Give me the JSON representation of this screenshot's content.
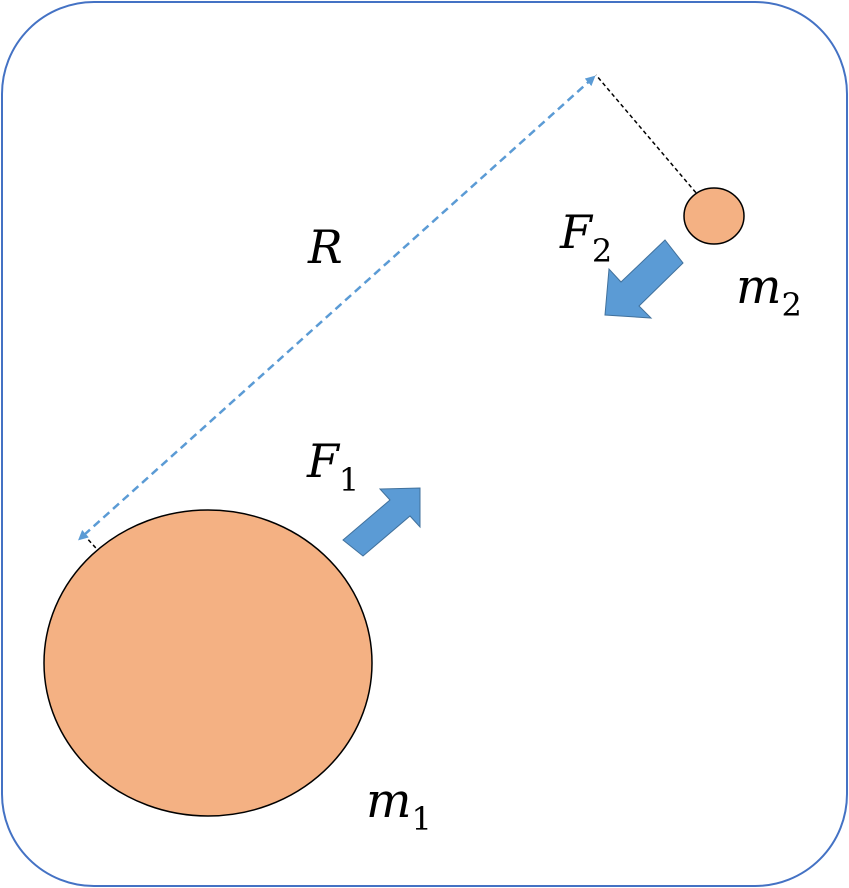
{
  "labels": {
    "distance": {
      "symbol": "R"
    },
    "force_1": {
      "symbol": "F",
      "subscript": "1"
    },
    "force_2": {
      "symbol": "F",
      "subscript": "2"
    },
    "mass_1": {
      "symbol": "m",
      "subscript": "1"
    },
    "mass_2": {
      "symbol": "m",
      "subscript": "2"
    }
  },
  "colors": {
    "frame_border": "#4472C4",
    "mass_fill": "#F4B183",
    "mass_stroke": "#000000",
    "force_arrow": "#5B9BD5",
    "distance_line": "#5B9BD5",
    "guide_line": "#000000"
  }
}
